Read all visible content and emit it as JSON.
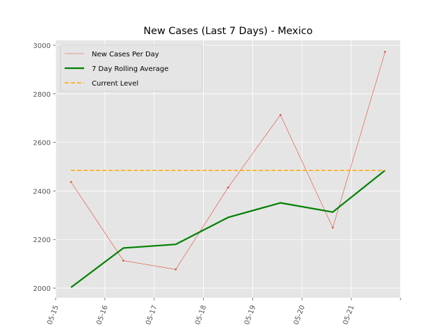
{
  "chart_data": {
    "type": "line",
    "title": "New Cases (Last 7 Days) - Mexico",
    "xlabel": "",
    "ylabel": "",
    "style": "ggplot",
    "grid": true,
    "legend_position": "upper-left",
    "x_tick_labels": [
      "05-15",
      "05-16",
      "05-17",
      "05-18",
      "05-19",
      "05-20",
      "05-21"
    ],
    "x_data": [
      "2020-05-15 15:00",
      "2020-05-17 18:00",
      "2020-05-19 21:00",
      "2020-05-22 00:00",
      "2020-05-24 03:00",
      "2020-05-26 06:00",
      "2020-05-28 09:00"
    ],
    "xlim": [
      "2020-05-15 00:00",
      "2020-05-29 00:00"
    ],
    "ylim": [
      1960,
      3020
    ],
    "y_ticks": [
      2000,
      2200,
      2400,
      2600,
      2800,
      3000
    ],
    "series": [
      {
        "name": "New Cases Per Day",
        "color": "#e24a33",
        "style": "thin-line-with-small-markers",
        "values": [
          2437,
          2113,
          2077,
          2414,
          2713,
          2249,
          2973
        ]
      },
      {
        "name": "7 Day Rolling Average",
        "color": "#008000",
        "style": "thick-line",
        "values": [
          2003,
          2165,
          2180,
          2291,
          2351,
          2313,
          2485
        ]
      },
      {
        "name": "Current Level",
        "color": "#ffa500",
        "style": "dashed-line",
        "values": [
          2485,
          2485,
          2485,
          2485,
          2485,
          2485,
          2485
        ]
      }
    ]
  }
}
